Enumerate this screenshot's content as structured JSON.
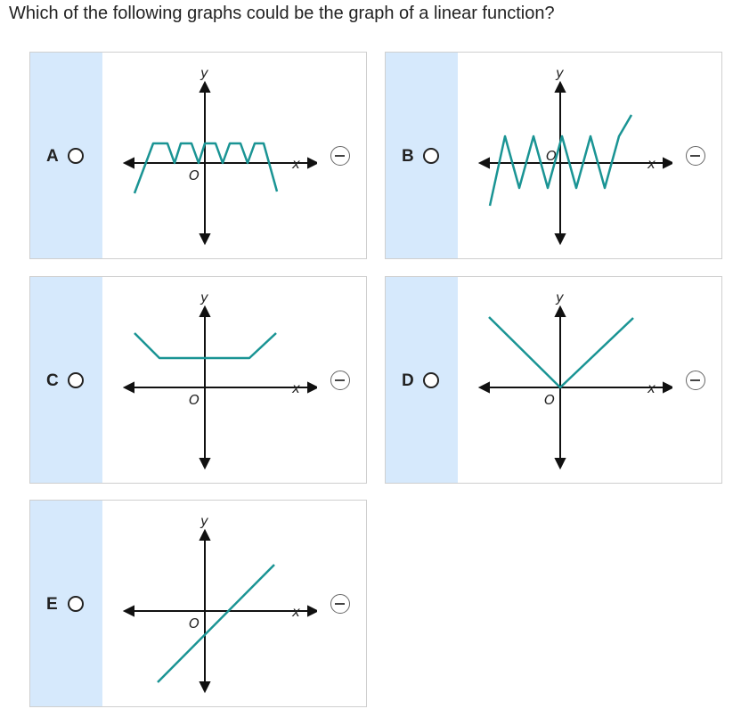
{
  "question": "Which of the following graphs could be the graph of a linear function?",
  "colors": {
    "curve": "#1a9494",
    "label_panel": "#d6e9fc",
    "axis": "#111111"
  },
  "axis_labels": {
    "y": "y",
    "x": "x",
    "origin": "O"
  },
  "choices": [
    {
      "letter": "A",
      "graph": "trapezoid-wave"
    },
    {
      "letter": "B",
      "graph": "zigzag"
    },
    {
      "letter": "C",
      "graph": "flat-bottom-cup"
    },
    {
      "letter": "D",
      "graph": "absolute-value-v"
    },
    {
      "letter": "E",
      "graph": "straight-line"
    }
  ],
  "eliminate_icon": "minus-circle-icon"
}
